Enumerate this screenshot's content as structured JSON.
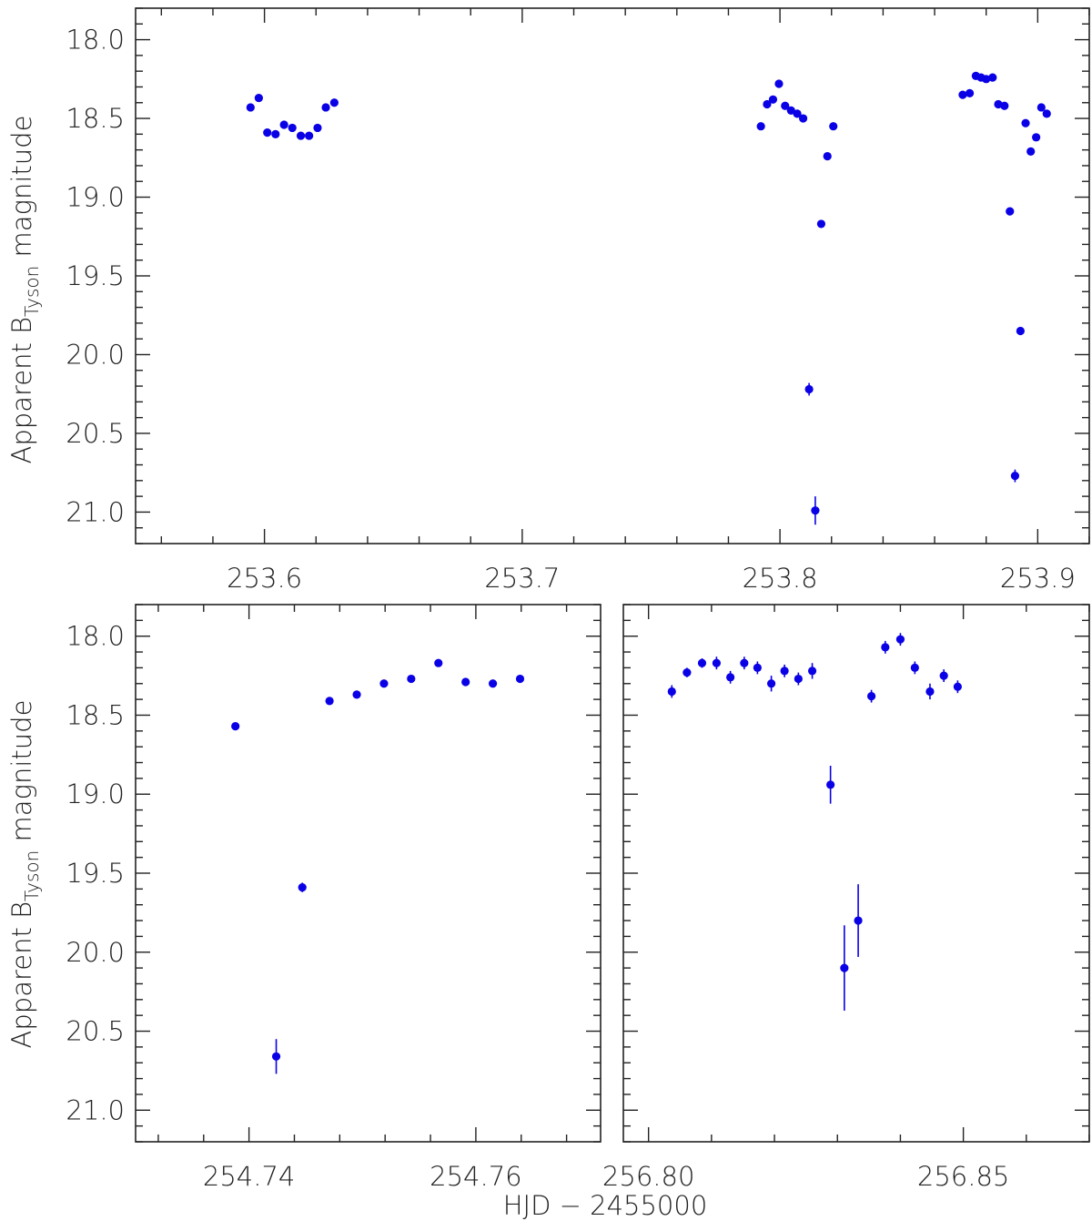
{
  "xlabel": "HJD − 2455000",
  "ylabel": {
    "prefix": "Apparent B",
    "sub": "Tyson",
    "suffix": " magnitude"
  },
  "colors": {
    "marker": "#0a00e6",
    "axis": "#222222"
  },
  "chart_data": [
    {
      "type": "scatter",
      "name": "top",
      "y_inverted": true,
      "xlim": [
        253.55,
        253.92
      ],
      "ylim": [
        17.8,
        21.2
      ],
      "xticks": [
        253.6,
        253.7,
        253.8,
        253.9
      ],
      "xtick_labels": [
        "253.6",
        "253.7",
        "253.8",
        "253.9"
      ],
      "yticks": [
        18.0,
        18.5,
        19.0,
        19.5,
        20.0,
        20.5,
        21.0
      ],
      "ytick_labels": [
        "18.0",
        "18.5",
        "19.0",
        "19.5",
        "20.0",
        "20.5",
        "21.0"
      ],
      "points": [
        {
          "x": 253.5946,
          "y": 18.43,
          "err": 0.01
        },
        {
          "x": 253.5978,
          "y": 18.37,
          "err": 0.01
        },
        {
          "x": 253.6011,
          "y": 18.59,
          "err": 0.01
        },
        {
          "x": 253.6043,
          "y": 18.6,
          "err": 0.01
        },
        {
          "x": 253.6076,
          "y": 18.54,
          "err": 0.01
        },
        {
          "x": 253.6108,
          "y": 18.56,
          "err": 0.01
        },
        {
          "x": 253.6141,
          "y": 18.61,
          "err": 0.01
        },
        {
          "x": 253.6173,
          "y": 18.61,
          "err": 0.01
        },
        {
          "x": 253.6206,
          "y": 18.56,
          "err": 0.01
        },
        {
          "x": 253.6238,
          "y": 18.43,
          "err": 0.01
        },
        {
          "x": 253.6271,
          "y": 18.4,
          "err": 0.01
        },
        {
          "x": 253.7926,
          "y": 18.55,
          "err": 0.01
        },
        {
          "x": 253.795,
          "y": 18.41,
          "err": 0.01
        },
        {
          "x": 253.7973,
          "y": 18.38,
          "err": 0.01
        },
        {
          "x": 253.7996,
          "y": 18.28,
          "err": 0.01
        },
        {
          "x": 253.802,
          "y": 18.42,
          "err": 0.01
        },
        {
          "x": 253.8043,
          "y": 18.45,
          "err": 0.01
        },
        {
          "x": 253.8067,
          "y": 18.47,
          "err": 0.01
        },
        {
          "x": 253.809,
          "y": 18.5,
          "err": 0.01
        },
        {
          "x": 253.8113,
          "y": 20.22,
          "err": 0.04
        },
        {
          "x": 253.8137,
          "y": 20.99,
          "err": 0.09
        },
        {
          "x": 253.816,
          "y": 19.17,
          "err": 0.01
        },
        {
          "x": 253.8184,
          "y": 18.74,
          "err": 0.01
        },
        {
          "x": 253.8207,
          "y": 18.55,
          "err": 0.01
        },
        {
          "x": 253.8709,
          "y": 18.35,
          "err": 0.01
        },
        {
          "x": 253.8736,
          "y": 18.34,
          "err": 0.01
        },
        {
          "x": 253.876,
          "y": 18.23,
          "err": 0.01
        },
        {
          "x": 253.878,
          "y": 18.24,
          "err": 0.01
        },
        {
          "x": 253.88,
          "y": 18.25,
          "err": 0.01
        },
        {
          "x": 253.8825,
          "y": 18.24,
          "err": 0.01
        },
        {
          "x": 253.8847,
          "y": 18.41,
          "err": 0.01
        },
        {
          "x": 253.8871,
          "y": 18.42,
          "err": 0.01
        },
        {
          "x": 253.8892,
          "y": 19.09,
          "err": 0.01
        },
        {
          "x": 253.8912,
          "y": 20.77,
          "err": 0.04
        },
        {
          "x": 253.8933,
          "y": 19.85,
          "err": 0.01
        },
        {
          "x": 253.8953,
          "y": 18.53,
          "err": 0.01
        },
        {
          "x": 253.8973,
          "y": 18.71,
          "err": 0.01
        },
        {
          "x": 253.8994,
          "y": 18.62,
          "err": 0.01
        },
        {
          "x": 253.9014,
          "y": 18.43,
          "err": 0.01
        },
        {
          "x": 253.9035,
          "y": 18.47,
          "err": 0.01
        }
      ]
    },
    {
      "type": "scatter",
      "name": "bottom-left",
      "y_inverted": true,
      "xlim": [
        254.73,
        254.771
      ],
      "ylim": [
        17.8,
        21.2
      ],
      "xticks": [
        254.74,
        254.76
      ],
      "xtick_labels": [
        "254.74",
        "254.76"
      ],
      "yticks": [
        18.0,
        18.5,
        19.0,
        19.5,
        20.0,
        20.5,
        21.0
      ],
      "ytick_labels": [
        "18.0",
        "18.5",
        "19.0",
        "19.5",
        "20.0",
        "20.5",
        "21.0"
      ],
      "points": [
        {
          "x": 254.7388,
          "y": 18.57,
          "err": 0.01
        },
        {
          "x": 254.7424,
          "y": 20.66,
          "err": 0.11
        },
        {
          "x": 254.7447,
          "y": 19.59,
          "err": 0.03
        },
        {
          "x": 254.7471,
          "y": 18.41,
          "err": 0.01
        },
        {
          "x": 254.7495,
          "y": 18.37,
          "err": 0.01
        },
        {
          "x": 254.7519,
          "y": 18.3,
          "err": 0.01
        },
        {
          "x": 254.7543,
          "y": 18.27,
          "err": 0.01
        },
        {
          "x": 254.7567,
          "y": 18.17,
          "err": 0.01
        },
        {
          "x": 254.7591,
          "y": 18.29,
          "err": 0.01
        },
        {
          "x": 254.7615,
          "y": 18.3,
          "err": 0.01
        },
        {
          "x": 254.7639,
          "y": 18.27,
          "err": 0.01
        }
      ]
    },
    {
      "type": "scatter",
      "name": "bottom-right",
      "y_inverted": true,
      "xlim": [
        256.796,
        256.87
      ],
      "ylim": [
        17.8,
        21.2
      ],
      "xticks": [
        256.8,
        256.85
      ],
      "xtick_labels": [
        "256.80",
        "256.85"
      ],
      "yticks": [
        18.0,
        18.5,
        19.0,
        19.5,
        20.0,
        20.5,
        21.0
      ],
      "ytick_labels": [
        "",
        "",
        "",
        "",
        "",
        "",
        ""
      ],
      "points": [
        {
          "x": 256.8037,
          "y": 18.35,
          "err": 0.04
        },
        {
          "x": 256.8061,
          "y": 18.23,
          "err": 0.03
        },
        {
          "x": 256.8085,
          "y": 18.17,
          "err": 0.03
        },
        {
          "x": 256.8108,
          "y": 18.17,
          "err": 0.04
        },
        {
          "x": 256.813,
          "y": 18.26,
          "err": 0.04
        },
        {
          "x": 256.8152,
          "y": 18.17,
          "err": 0.04
        },
        {
          "x": 256.8173,
          "y": 18.2,
          "err": 0.04
        },
        {
          "x": 256.8195,
          "y": 18.3,
          "err": 0.05
        },
        {
          "x": 256.8216,
          "y": 18.22,
          "err": 0.04
        },
        {
          "x": 256.8238,
          "y": 18.27,
          "err": 0.04
        },
        {
          "x": 256.826,
          "y": 18.22,
          "err": 0.05
        },
        {
          "x": 256.8289,
          "y": 18.94,
          "err": 0.12
        },
        {
          "x": 256.8311,
          "y": 20.1,
          "err": 0.27
        },
        {
          "x": 256.8333,
          "y": 19.8,
          "err": 0.23
        },
        {
          "x": 256.8354,
          "y": 18.38,
          "err": 0.04
        },
        {
          "x": 256.8376,
          "y": 18.07,
          "err": 0.04
        },
        {
          "x": 256.84,
          "y": 18.02,
          "err": 0.04
        },
        {
          "x": 256.8423,
          "y": 18.2,
          "err": 0.04
        },
        {
          "x": 256.8447,
          "y": 18.35,
          "err": 0.05
        },
        {
          "x": 256.8469,
          "y": 18.25,
          "err": 0.04
        },
        {
          "x": 256.8491,
          "y": 18.32,
          "err": 0.04
        }
      ]
    }
  ]
}
